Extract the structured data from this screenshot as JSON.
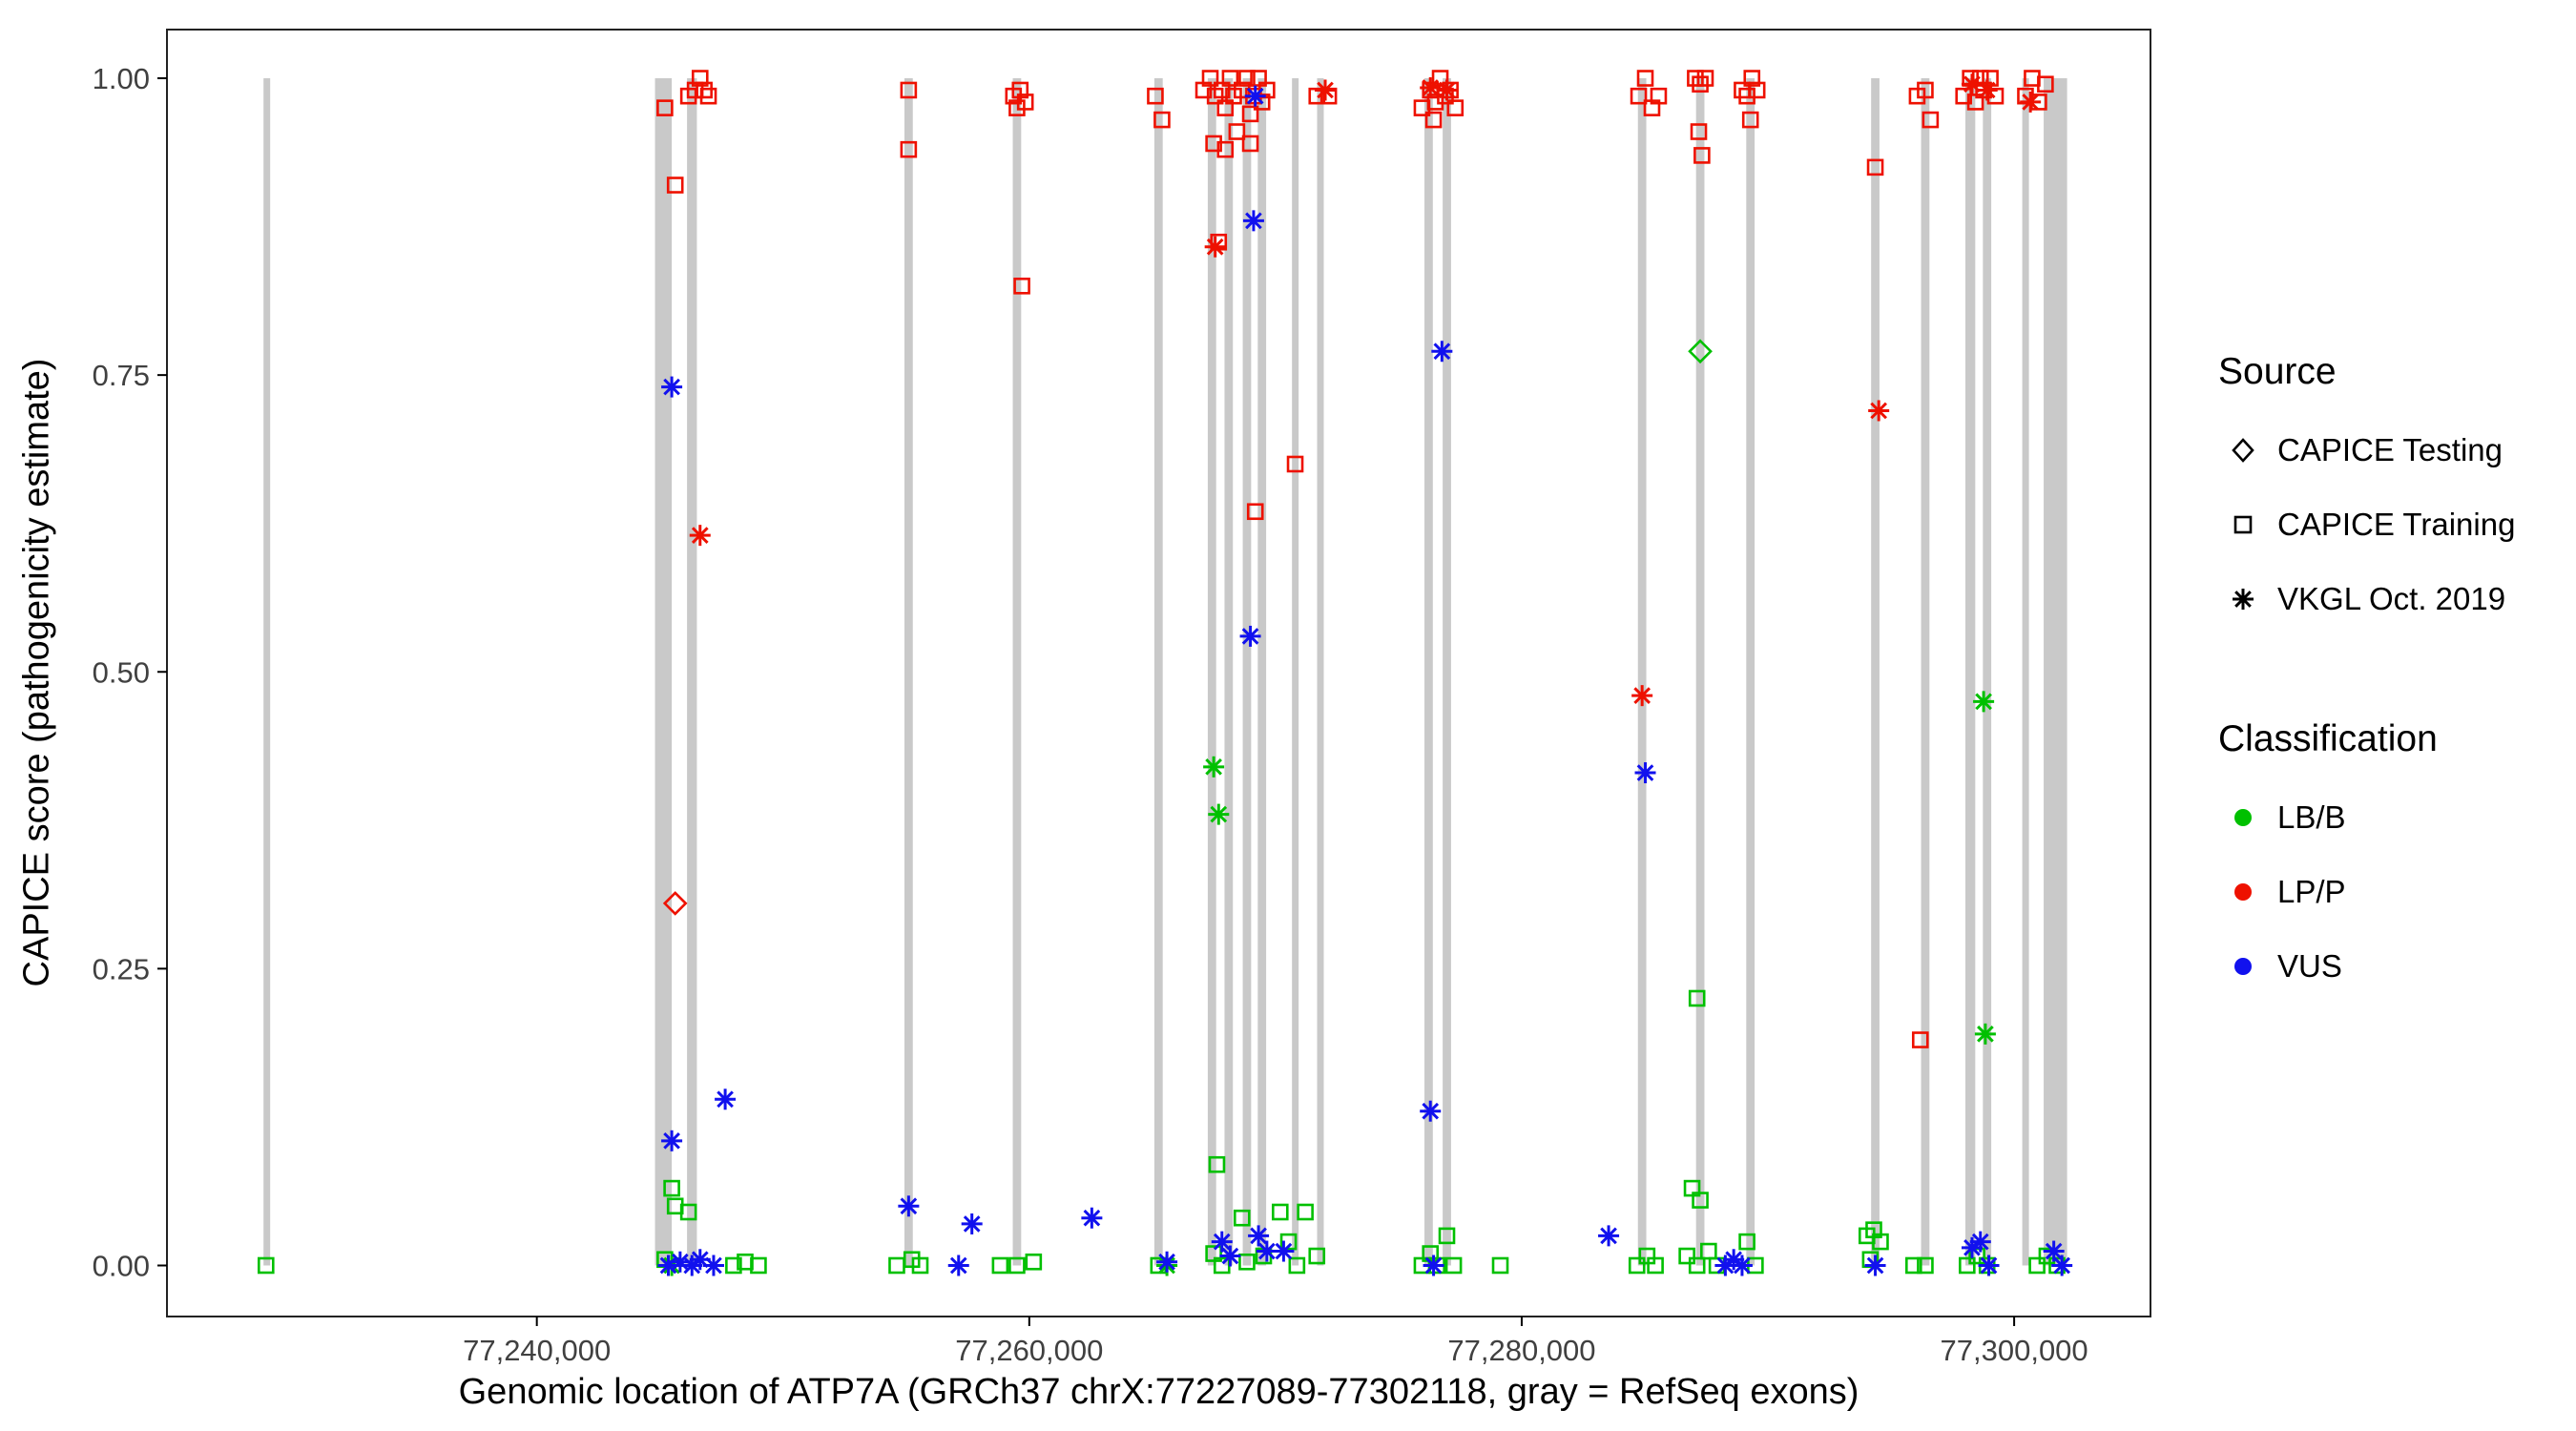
{
  "chart_data": {
    "type": "scatter",
    "xlabel": "Genomic location of ATP7A (GRCh37 chrX:77227089-77302118, gray = RefSeq exons)",
    "ylabel": "CAPICE score (pathogenicity estimate)",
    "xlim": [
      77224978,
      77305537
    ],
    "ylim": [
      -0.043,
      1.041
    ],
    "x_ticks": [
      {
        "value": 77240000,
        "label": "77,240,000"
      },
      {
        "value": 77260000,
        "label": "77,260,000"
      },
      {
        "value": 77280000,
        "label": "77,280,000"
      },
      {
        "value": 77300000,
        "label": "77,300,000"
      }
    ],
    "y_ticks": [
      {
        "value": 0.0,
        "label": "0.00"
      },
      {
        "value": 0.25,
        "label": "0.25"
      },
      {
        "value": 0.5,
        "label": "0.50"
      },
      {
        "value": 0.75,
        "label": "0.75"
      },
      {
        "value": 1.0,
        "label": "1.00"
      }
    ],
    "exon_color": "#c9c9c9",
    "exons": [
      [
        77228900,
        77229170
      ],
      [
        77244800,
        77245480
      ],
      [
        77246100,
        77246500
      ],
      [
        77254930,
        77255270
      ],
      [
        77259330,
        77259670
      ],
      [
        77265080,
        77265420
      ],
      [
        77267250,
        77267590
      ],
      [
        77267930,
        77268270
      ],
      [
        77268670,
        77269010
      ],
      [
        77269280,
        77269620
      ],
      [
        77270670,
        77270940
      ],
      [
        77271690,
        77271960
      ],
      [
        77276050,
        77276390
      ],
      [
        77276790,
        77277130
      ],
      [
        77284720,
        77285060
      ],
      [
        77287080,
        77287420
      ],
      [
        77289120,
        77289460
      ],
      [
        77294190,
        77294530
      ],
      [
        77296220,
        77296560
      ],
      [
        77298020,
        77298420
      ],
      [
        77298730,
        77299070
      ],
      [
        77300330,
        77300600
      ],
      [
        77301200,
        77302150
      ]
    ],
    "classification_colors": {
      "LB/B": "#00c000",
      "LP/P": "#ee1100",
      "VUS": "#1111ee"
    },
    "source_shapes": {
      "CAPICE Testing": "diamond",
      "CAPICE Training": "square",
      "VKGL Oct. 2019": "asterisk"
    },
    "series": [
      {
        "source": "CAPICE Testing",
        "classification": "LP/P",
        "shape": "diamond",
        "points": [
          [
            77245620,
            0.305
          ]
        ]
      },
      {
        "source": "CAPICE Testing",
        "classification": "LB/B",
        "shape": "diamond",
        "points": [
          [
            77287250,
            0.77
          ]
        ]
      },
      {
        "source": "CAPICE Training",
        "classification": "LP/P",
        "shape": "square",
        "points": [
          [
            77245200,
            0.975
          ],
          [
            77245620,
            0.91
          ],
          [
            77246160,
            0.985
          ],
          [
            77246430,
            0.99
          ],
          [
            77246630,
            1.0
          ],
          [
            77246800,
            0.99
          ],
          [
            77246970,
            0.985
          ],
          [
            77255100,
            0.99
          ],
          [
            77255100,
            0.94
          ],
          [
            77259360,
            0.985
          ],
          [
            77259500,
            0.975
          ],
          [
            77259630,
            0.99
          ],
          [
            77259840,
            0.98
          ],
          [
            77259700,
            0.825
          ],
          [
            77265120,
            0.985
          ],
          [
            77265390,
            0.965
          ],
          [
            77267080,
            0.99
          ],
          [
            77267350,
            1.0
          ],
          [
            77267490,
            0.945
          ],
          [
            77267550,
            0.985
          ],
          [
            77267690,
            0.862
          ],
          [
            77267825,
            0.99
          ],
          [
            77267960,
            0.975
          ],
          [
            77267960,
            0.94
          ],
          [
            77268160,
            1.0
          ],
          [
            77268300,
            0.985
          ],
          [
            77268430,
            0.955
          ],
          [
            77268640,
            0.99
          ],
          [
            77268840,
            1.0
          ],
          [
            77268980,
            0.97
          ],
          [
            77268980,
            0.945
          ],
          [
            77269110,
            0.985
          ],
          [
            77269180,
            0.635
          ],
          [
            77269310,
            1.0
          ],
          [
            77269450,
            0.98
          ],
          [
            77269650,
            0.99
          ],
          [
            77270800,
            0.675
          ],
          [
            77271680,
            0.985
          ],
          [
            77272160,
            0.985
          ],
          [
            77275950,
            0.975
          ],
          [
            77276290,
            0.99
          ],
          [
            77276420,
            0.965
          ],
          [
            77276490,
            0.98
          ],
          [
            77276690,
            1.0
          ],
          [
            77276900,
            0.985
          ],
          [
            77277100,
            0.99
          ],
          [
            77277300,
            0.975
          ],
          [
            77284750,
            0.985
          ],
          [
            77285020,
            1.0
          ],
          [
            77285290,
            0.975
          ],
          [
            77285560,
            0.985
          ],
          [
            77287050,
            1.0
          ],
          [
            77287190,
            0.955
          ],
          [
            77287250,
            0.995
          ],
          [
            77287320,
            0.935
          ],
          [
            77287460,
            1.0
          ],
          [
            77288950,
            0.99
          ],
          [
            77289150,
            0.985
          ],
          [
            77289290,
            0.965
          ],
          [
            77289350,
            1.0
          ],
          [
            77289560,
            0.99
          ],
          [
            77294360,
            0.925
          ],
          [
            77296060,
            0.985
          ],
          [
            77296190,
            0.19
          ],
          [
            77296390,
            0.99
          ],
          [
            77296600,
            0.965
          ],
          [
            77297950,
            0.985
          ],
          [
            77298220,
            1.0
          ],
          [
            77298430,
            0.98
          ],
          [
            77298630,
            1.0
          ],
          [
            77298760,
            0.99
          ],
          [
            77299030,
            1.0
          ],
          [
            77299240,
            0.985
          ],
          [
            77300460,
            0.985
          ],
          [
            77300730,
            1.0
          ],
          [
            77301000,
            0.98
          ],
          [
            77301270,
            0.995
          ]
        ]
      },
      {
        "source": "CAPICE Training",
        "classification": "LB/B",
        "shape": "square",
        "points": [
          [
            77229000,
            0.0
          ],
          [
            77245200,
            0.005
          ],
          [
            77245480,
            0.065
          ],
          [
            77245620,
            0.05
          ],
          [
            77246160,
            0.045
          ],
          [
            77247990,
            0.0
          ],
          [
            77248460,
            0.003
          ],
          [
            77249000,
            0.0
          ],
          [
            77254620,
            0.0
          ],
          [
            77255230,
            0.005
          ],
          [
            77255570,
            0.0
          ],
          [
            77258820,
            0.0
          ],
          [
            77259500,
            0.0
          ],
          [
            77260175,
            0.003
          ],
          [
            77265250,
            0.0
          ],
          [
            77267490,
            0.01
          ],
          [
            77267620,
            0.085
          ],
          [
            77267825,
            0.0
          ],
          [
            77268640,
            0.04
          ],
          [
            77268840,
            0.003
          ],
          [
            77269520,
            0.008
          ],
          [
            77270190,
            0.045
          ],
          [
            77270530,
            0.02
          ],
          [
            77270870,
            0.0
          ],
          [
            77271210,
            0.045
          ],
          [
            77271680,
            0.008
          ],
          [
            77275950,
            0.0
          ],
          [
            77276290,
            0.01
          ],
          [
            77276560,
            0.0
          ],
          [
            77276960,
            0.025
          ],
          [
            77277235,
            0.0
          ],
          [
            77279130,
            0.0
          ],
          [
            77284680,
            0.0
          ],
          [
            77285090,
            0.008
          ],
          [
            77285430,
            0.0
          ],
          [
            77286710,
            0.008
          ],
          [
            77286920,
            0.065
          ],
          [
            77287120,
            0.225
          ],
          [
            77287120,
            0.0
          ],
          [
            77287250,
            0.055
          ],
          [
            77287590,
            0.012
          ],
          [
            77287930,
            0.0
          ],
          [
            77289150,
            0.02
          ],
          [
            77289490,
            0.0
          ],
          [
            77294020,
            0.025
          ],
          [
            77294160,
            0.005
          ],
          [
            77294300,
            0.03
          ],
          [
            77294570,
            0.02
          ],
          [
            77295920,
            0.0
          ],
          [
            77296390,
            0.0
          ],
          [
            77298090,
            0.0
          ],
          [
            77298490,
            0.008
          ],
          [
            77298900,
            0.0
          ],
          [
            77300930,
            0.0
          ],
          [
            77301330,
            0.008
          ],
          [
            77301740,
            0.0
          ]
        ]
      },
      {
        "source": "VKGL Oct. 2019",
        "classification": "LP/P",
        "shape": "asterisk",
        "points": [
          [
            77246630,
            0.615
          ],
          [
            77267550,
            0.858
          ],
          [
            77272020,
            0.99
          ],
          [
            77276290,
            0.992
          ],
          [
            77276960,
            0.99
          ],
          [
            77284890,
            0.48
          ],
          [
            77294500,
            0.72
          ],
          [
            77298290,
            0.995
          ],
          [
            77298900,
            0.99
          ],
          [
            77300660,
            0.98
          ]
        ]
      },
      {
        "source": "VKGL Oct. 2019",
        "classification": "LB/B",
        "shape": "asterisk",
        "points": [
          [
            77267490,
            0.42
          ],
          [
            77267690,
            0.38
          ],
          [
            77298760,
            0.475
          ],
          [
            77298830,
            0.195
          ],
          [
            77265590,
            0.0
          ],
          [
            77245480,
            0.0
          ]
        ]
      },
      {
        "source": "VKGL Oct. 2019",
        "classification": "VUS",
        "shape": "asterisk",
        "points": [
          [
            77245480,
            0.74
          ],
          [
            77245480,
            0.105
          ],
          [
            77247650,
            0.14
          ],
          [
            77245340,
            0.0
          ],
          [
            77245820,
            0.003
          ],
          [
            77246300,
            0.0
          ],
          [
            77246630,
            0.005
          ],
          [
            77247180,
            0.0
          ],
          [
            77255100,
            0.05
          ],
          [
            77257130,
            0.0
          ],
          [
            77257670,
            0.035
          ],
          [
            77262540,
            0.04
          ],
          [
            77265590,
            0.003
          ],
          [
            77267825,
            0.02
          ],
          [
            77268160,
            0.008
          ],
          [
            77268980,
            0.53
          ],
          [
            77269110,
            0.88
          ],
          [
            77269180,
            0.985
          ],
          [
            77269310,
            0.025
          ],
          [
            77269650,
            0.012
          ],
          [
            77270330,
            0.012
          ],
          [
            77276290,
            0.13
          ],
          [
            77276420,
            0.0
          ],
          [
            77276760,
            0.77
          ],
          [
            77283530,
            0.025
          ],
          [
            77285020,
            0.415
          ],
          [
            77288270,
            0.0
          ],
          [
            77288610,
            0.005
          ],
          [
            77288950,
            0.0
          ],
          [
            77294360,
            0.0
          ],
          [
            77298290,
            0.015
          ],
          [
            77298630,
            0.02
          ],
          [
            77298970,
            0.0
          ],
          [
            77301610,
            0.012
          ],
          [
            77301940,
            0.0
          ]
        ]
      }
    ]
  },
  "legend": {
    "source": {
      "title": "Source",
      "items": [
        {
          "label": "CAPICE Testing",
          "icon": "diamond-icon"
        },
        {
          "label": "CAPICE Training",
          "icon": "square-icon"
        },
        {
          "label": "VKGL Oct. 2019",
          "icon": "asterisk-icon"
        }
      ]
    },
    "classification": {
      "title": "Classification",
      "items": [
        {
          "label": "LB/B",
          "color": "#00c000"
        },
        {
          "label": "LP/P",
          "color": "#ee1100"
        },
        {
          "label": "VUS",
          "color": "#1111ee"
        }
      ]
    }
  }
}
